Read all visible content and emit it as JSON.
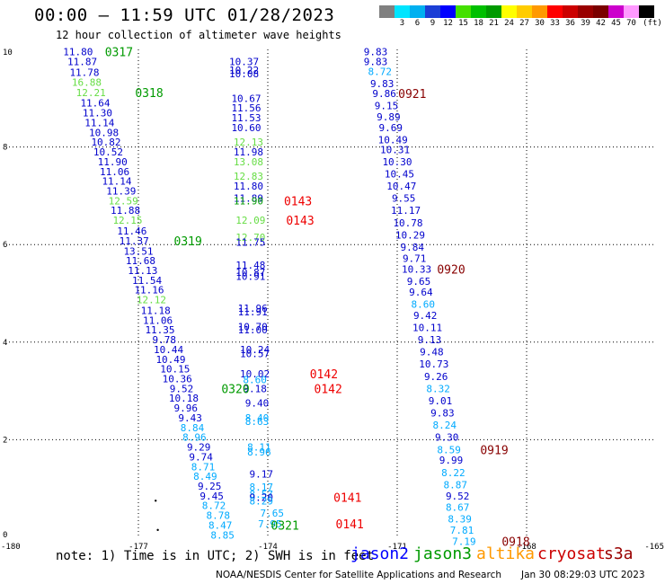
{
  "header": {
    "title": "00:00 – 11:59 UTC 01/28/2023",
    "subtitle": "12 hour collection of altimeter wave heights"
  },
  "colorbar": {
    "unit_label": "(ft)",
    "bins": [
      {
        "label": "",
        "color": "#808080"
      },
      {
        "label": "3",
        "color": "#00e5ff"
      },
      {
        "label": "6",
        "color": "#00b0f0"
      },
      {
        "label": "9",
        "color": "#1c3fd6"
      },
      {
        "label": "12",
        "color": "#0000ff"
      },
      {
        "label": "15",
        "color": "#44e000"
      },
      {
        "label": "18",
        "color": "#00c000"
      },
      {
        "label": "21",
        "color": "#009a00"
      },
      {
        "label": "24",
        "color": "#ffff00"
      },
      {
        "label": "27",
        "color": "#ffcc00"
      },
      {
        "label": "30",
        "color": "#ff9900"
      },
      {
        "label": "33",
        "color": "#ff0000"
      },
      {
        "label": "36",
        "color": "#cc0000"
      },
      {
        "label": "39",
        "color": "#990000"
      },
      {
        "label": "42",
        "color": "#7a0000"
      },
      {
        "label": "45",
        "color": "#cc00cc"
      },
      {
        "label": "70",
        "color": "#ff99ff"
      },
      {
        "label": "",
        "color": "#000000"
      }
    ]
  },
  "footer": {
    "note": "note: 1) Time is in UTC; 2) SWH is in feet",
    "credit": "NOAA/NESDIS Center for Satellite Applications and Research",
    "timestamp": "Jan 30 08:29:03 UTC 2023"
  },
  "legend": [
    {
      "name": "jason2",
      "color": "#0000ff"
    },
    {
      "name": "jason3",
      "color": "#009a00"
    },
    {
      "name": "altika",
      "color": "#ff9900"
    },
    {
      "name": "cryosat",
      "color": "#cc0000"
    },
    {
      "name": "s3a",
      "color": "#990000"
    }
  ],
  "chart_data": {
    "type": "scatter",
    "xlim": [
      -180,
      -165
    ],
    "ylim": [
      0,
      10
    ],
    "x_ticks": [
      "-180",
      "-177",
      "-174",
      "-171",
      "-168",
      "-165"
    ],
    "y_ticks": [
      "0",
      "2",
      "4",
      "6",
      "8",
      "10"
    ],
    "grid": true,
    "colors": {
      "dark_blue": "#0000cc",
      "light_blue": "#00aaff",
      "light_green": "#66dd44",
      "green": "#009a00",
      "red": "#ee0000",
      "dark_red": "#880000"
    },
    "points": [
      {
        "x": -178.4,
        "y": 9.95,
        "v": "11.80",
        "c": "dark_blue"
      },
      {
        "x": -178.3,
        "y": 9.75,
        "v": "11.87",
        "c": "dark_blue"
      },
      {
        "x": -178.25,
        "y": 9.53,
        "v": "11.78",
        "c": "dark_blue"
      },
      {
        "x": -178.2,
        "y": 9.33,
        "v": "16.88",
        "c": "light_green"
      },
      {
        "x": -178.1,
        "y": 9.12,
        "v": "12.21",
        "c": "light_green"
      },
      {
        "x": -178.0,
        "y": 8.9,
        "v": "11.64",
        "c": "dark_blue"
      },
      {
        "x": -177.95,
        "y": 8.7,
        "v": "11.30",
        "c": "dark_blue"
      },
      {
        "x": -177.9,
        "y": 8.5,
        "v": "11.14",
        "c": "dark_blue"
      },
      {
        "x": -177.8,
        "y": 8.3,
        "v": "10.98",
        "c": "dark_blue"
      },
      {
        "x": -177.75,
        "y": 8.1,
        "v": "10.82",
        "c": "dark_blue"
      },
      {
        "x": -177.7,
        "y": 7.9,
        "v": "10.52",
        "c": "dark_blue"
      },
      {
        "x": -177.6,
        "y": 7.7,
        "v": "11.90",
        "c": "dark_blue"
      },
      {
        "x": -177.55,
        "y": 7.5,
        "v": "11.06",
        "c": "dark_blue"
      },
      {
        "x": -177.5,
        "y": 7.3,
        "v": "11.14",
        "c": "dark_blue"
      },
      {
        "x": -177.4,
        "y": 7.1,
        "v": "11.39",
        "c": "dark_blue"
      },
      {
        "x": -177.35,
        "y": 6.9,
        "v": "12.59",
        "c": "light_green"
      },
      {
        "x": -177.3,
        "y": 6.7,
        "v": "11.88",
        "c": "dark_blue"
      },
      {
        "x": -177.25,
        "y": 6.5,
        "v": "12.15",
        "c": "light_green"
      },
      {
        "x": -177.15,
        "y": 6.28,
        "v": "11.46",
        "c": "dark_blue"
      },
      {
        "x": -177.1,
        "y": 6.08,
        "v": "11.37",
        "c": "dark_blue"
      },
      {
        "x": -177.0,
        "y": 5.87,
        "v": "13.51",
        "c": "dark_blue"
      },
      {
        "x": -176.95,
        "y": 5.67,
        "v": "11.68",
        "c": "dark_blue"
      },
      {
        "x": -176.9,
        "y": 5.47,
        "v": "11.13",
        "c": "dark_blue"
      },
      {
        "x": -176.8,
        "y": 5.27,
        "v": "11.54",
        "c": "dark_blue"
      },
      {
        "x": -176.75,
        "y": 5.07,
        "v": "11.16",
        "c": "dark_blue"
      },
      {
        "x": -176.7,
        "y": 4.87,
        "v": "12.12",
        "c": "light_green"
      },
      {
        "x": -176.6,
        "y": 4.65,
        "v": "11.18",
        "c": "dark_blue"
      },
      {
        "x": -176.55,
        "y": 4.45,
        "v": "11.06",
        "c": "dark_blue"
      },
      {
        "x": -176.5,
        "y": 4.25,
        "v": "11.35",
        "c": "dark_blue"
      },
      {
        "x": -176.4,
        "y": 4.05,
        "v": "9.78",
        "c": "dark_blue"
      },
      {
        "x": -176.3,
        "y": 3.85,
        "v": "10.44",
        "c": "dark_blue"
      },
      {
        "x": -176.25,
        "y": 3.65,
        "v": "10.49",
        "c": "dark_blue"
      },
      {
        "x": -176.15,
        "y": 3.45,
        "v": "10.15",
        "c": "dark_blue"
      },
      {
        "x": -176.1,
        "y": 3.25,
        "v": "10.36",
        "c": "dark_blue"
      },
      {
        "x": -176.0,
        "y": 3.05,
        "v": "9.52",
        "c": "dark_blue"
      },
      {
        "x": -175.95,
        "y": 2.85,
        "v": "10.18",
        "c": "dark_blue"
      },
      {
        "x": -175.9,
        "y": 2.65,
        "v": "9.96",
        "c": "dark_blue"
      },
      {
        "x": -175.8,
        "y": 2.45,
        "v": "9.43",
        "c": "dark_blue"
      },
      {
        "x": -175.75,
        "y": 2.25,
        "v": "8.84",
        "c": "light_blue"
      },
      {
        "x": -175.7,
        "y": 2.05,
        "v": "8.96",
        "c": "light_blue"
      },
      {
        "x": -175.6,
        "y": 1.85,
        "v": "9.29",
        "c": "dark_blue"
      },
      {
        "x": -175.55,
        "y": 1.65,
        "v": "9.74",
        "c": "dark_blue"
      },
      {
        "x": -175.5,
        "y": 1.45,
        "v": "8.71",
        "c": "light_blue"
      },
      {
        "x": -175.45,
        "y": 1.25,
        "v": "8.49",
        "c": "light_blue"
      },
      {
        "x": -175.35,
        "y": 1.05,
        "v": "9.25",
        "c": "dark_blue"
      },
      {
        "x": -175.3,
        "y": 0.85,
        "v": "9.45",
        "c": "dark_blue"
      },
      {
        "x": -175.25,
        "y": 0.65,
        "v": "8.72",
        "c": "light_blue"
      },
      {
        "x": -175.15,
        "y": 0.45,
        "v": "8.78",
        "c": "light_blue"
      },
      {
        "x": -175.1,
        "y": 0.25,
        "v": "8.47",
        "c": "light_blue"
      },
      {
        "x": -175.05,
        "y": 0.05,
        "v": "8.85",
        "c": "light_blue"
      },
      {
        "x": -174.55,
        "y": 9.75,
        "v": "10.37",
        "c": "dark_blue"
      },
      {
        "x": -174.55,
        "y": 9.58,
        "v": "10.22",
        "c": "dark_blue"
      },
      {
        "x": -174.55,
        "y": 9.5,
        "v": "10.08",
        "c": "dark_blue"
      },
      {
        "x": -174.5,
        "y": 9.0,
        "v": "10.67",
        "c": "dark_blue"
      },
      {
        "x": -174.5,
        "y": 8.8,
        "v": "11.56",
        "c": "dark_blue"
      },
      {
        "x": -174.5,
        "y": 8.6,
        "v": "11.53",
        "c": "dark_blue"
      },
      {
        "x": -174.5,
        "y": 8.4,
        "v": "10.60",
        "c": "dark_blue"
      },
      {
        "x": -174.45,
        "y": 8.1,
        "v": "12.13",
        "c": "light_green"
      },
      {
        "x": -174.45,
        "y": 7.9,
        "v": "11.98",
        "c": "dark_blue"
      },
      {
        "x": -174.45,
        "y": 7.7,
        "v": "13.08",
        "c": "light_green"
      },
      {
        "x": -174.45,
        "y": 7.4,
        "v": "12.83",
        "c": "light_green"
      },
      {
        "x": -174.45,
        "y": 7.2,
        "v": "11.80",
        "c": "dark_blue"
      },
      {
        "x": -174.45,
        "y": 6.95,
        "v": "11.89",
        "c": "dark_blue"
      },
      {
        "x": -174.45,
        "y": 6.9,
        "v": "11.90",
        "c": "green"
      },
      {
        "x": -174.4,
        "y": 6.5,
        "v": "12.09",
        "c": "light_green"
      },
      {
        "x": -174.4,
        "y": 6.15,
        "v": "12.70",
        "c": "light_green"
      },
      {
        "x": -174.4,
        "y": 6.05,
        "v": "11.75",
        "c": "dark_blue"
      },
      {
        "x": -174.4,
        "y": 5.58,
        "v": "11.48",
        "c": "dark_blue"
      },
      {
        "x": -174.4,
        "y": 5.43,
        "v": "10.87",
        "c": "dark_blue"
      },
      {
        "x": -174.4,
        "y": 5.35,
        "v": "10.91",
        "c": "dark_blue"
      },
      {
        "x": -174.35,
        "y": 4.7,
        "v": "11.96",
        "c": "dark_blue"
      },
      {
        "x": -174.35,
        "y": 4.62,
        "v": "11.91",
        "c": "dark_blue"
      },
      {
        "x": -174.35,
        "y": 4.32,
        "v": "10.70",
        "c": "dark_blue"
      },
      {
        "x": -174.35,
        "y": 4.25,
        "v": "11.00",
        "c": "dark_blue"
      },
      {
        "x": -174.3,
        "y": 3.85,
        "v": "10.24",
        "c": "dark_blue"
      },
      {
        "x": -174.3,
        "y": 3.77,
        "v": "10.57",
        "c": "dark_blue"
      },
      {
        "x": -174.3,
        "y": 3.35,
        "v": "10.02",
        "c": "dark_blue"
      },
      {
        "x": -174.3,
        "y": 3.23,
        "v": "8.60",
        "c": "light_blue"
      },
      {
        "x": -174.3,
        "y": 3.05,
        "v": "9.18",
        "c": "dark_blue"
      },
      {
        "x": -174.25,
        "y": 2.75,
        "v": "9.40",
        "c": "dark_blue"
      },
      {
        "x": -174.25,
        "y": 2.45,
        "v": "8.40",
        "c": "light_blue"
      },
      {
        "x": -174.25,
        "y": 2.38,
        "v": "8.63",
        "c": "light_blue"
      },
      {
        "x": -174.2,
        "y": 1.85,
        "v": "8.11",
        "c": "light_blue"
      },
      {
        "x": -174.2,
        "y": 1.75,
        "v": "8.96",
        "c": "light_blue"
      },
      {
        "x": -174.15,
        "y": 1.3,
        "v": "9.17",
        "c": "dark_blue"
      },
      {
        "x": -174.15,
        "y": 1.03,
        "v": "8.17",
        "c": "light_blue"
      },
      {
        "x": -174.15,
        "y": 0.88,
        "v": "8.57",
        "c": "light_blue"
      },
      {
        "x": -174.15,
        "y": 0.82,
        "v": "9.20",
        "c": "dark_blue"
      },
      {
        "x": -174.15,
        "y": 0.75,
        "v": "8.29",
        "c": "light_blue"
      },
      {
        "x": -173.9,
        "y": 0.5,
        "v": "7.65",
        "c": "light_blue"
      },
      {
        "x": -173.95,
        "y": 0.28,
        "v": "7.95",
        "c": "light_blue"
      },
      {
        "x": -171.5,
        "y": 9.95,
        "v": "9.83",
        "c": "dark_blue"
      },
      {
        "x": -171.5,
        "y": 9.75,
        "v": "9.83",
        "c": "dark_blue"
      },
      {
        "x": -171.4,
        "y": 9.55,
        "v": "8.72",
        "c": "light_blue"
      },
      {
        "x": -171.35,
        "y": 9.3,
        "v": "9.83",
        "c": "dark_blue"
      },
      {
        "x": -171.3,
        "y": 9.1,
        "v": "9.86",
        "c": "dark_blue"
      },
      {
        "x": -171.25,
        "y": 8.85,
        "v": "9.15",
        "c": "dark_blue"
      },
      {
        "x": -171.2,
        "y": 8.62,
        "v": "9.89",
        "c": "dark_blue"
      },
      {
        "x": -171.15,
        "y": 8.4,
        "v": "9.69",
        "c": "dark_blue"
      },
      {
        "x": -171.1,
        "y": 8.15,
        "v": "10.49",
        "c": "dark_blue"
      },
      {
        "x": -171.05,
        "y": 7.95,
        "v": "10.31",
        "c": "dark_blue"
      },
      {
        "x": -171.0,
        "y": 7.7,
        "v": "10.30",
        "c": "dark_blue"
      },
      {
        "x": -170.95,
        "y": 7.45,
        "v": "10.45",
        "c": "dark_blue"
      },
      {
        "x": -170.9,
        "y": 7.2,
        "v": "10.47",
        "c": "dark_blue"
      },
      {
        "x": -170.85,
        "y": 6.95,
        "v": "9.55",
        "c": "dark_blue"
      },
      {
        "x": -170.8,
        "y": 6.7,
        "v": "11.17",
        "c": "dark_blue"
      },
      {
        "x": -170.75,
        "y": 6.45,
        "v": "10.78",
        "c": "dark_blue"
      },
      {
        "x": -170.7,
        "y": 6.2,
        "v": "10.29",
        "c": "dark_blue"
      },
      {
        "x": -170.65,
        "y": 5.95,
        "v": "9.84",
        "c": "dark_blue"
      },
      {
        "x": -170.6,
        "y": 5.72,
        "v": "9.71",
        "c": "dark_blue"
      },
      {
        "x": -170.55,
        "y": 5.5,
        "v": "10.33",
        "c": "dark_blue"
      },
      {
        "x": -170.5,
        "y": 5.25,
        "v": "9.65",
        "c": "dark_blue"
      },
      {
        "x": -170.45,
        "y": 5.03,
        "v": "9.64",
        "c": "dark_blue"
      },
      {
        "x": -170.4,
        "y": 4.78,
        "v": "8.60",
        "c": "light_blue"
      },
      {
        "x": -170.35,
        "y": 4.55,
        "v": "9.42",
        "c": "dark_blue"
      },
      {
        "x": -170.3,
        "y": 4.3,
        "v": "10.11",
        "c": "dark_blue"
      },
      {
        "x": -170.25,
        "y": 4.05,
        "v": "9.13",
        "c": "dark_blue"
      },
      {
        "x": -170.2,
        "y": 3.8,
        "v": "9.48",
        "c": "dark_blue"
      },
      {
        "x": -170.15,
        "y": 3.55,
        "v": "10.73",
        "c": "dark_blue"
      },
      {
        "x": -170.1,
        "y": 3.3,
        "v": "9.26",
        "c": "dark_blue"
      },
      {
        "x": -170.05,
        "y": 3.05,
        "v": "8.32",
        "c": "light_blue"
      },
      {
        "x": -170.0,
        "y": 2.8,
        "v": "9.01",
        "c": "dark_blue"
      },
      {
        "x": -169.95,
        "y": 2.55,
        "v": "9.83",
        "c": "dark_blue"
      },
      {
        "x": -169.9,
        "y": 2.3,
        "v": "8.24",
        "c": "light_blue"
      },
      {
        "x": -169.85,
        "y": 2.05,
        "v": "9.30",
        "c": "dark_blue"
      },
      {
        "x": -169.8,
        "y": 1.8,
        "v": "8.59",
        "c": "light_blue"
      },
      {
        "x": -169.75,
        "y": 1.58,
        "v": "9.99",
        "c": "dark_blue"
      },
      {
        "x": -169.7,
        "y": 1.33,
        "v": "8.22",
        "c": "light_blue"
      },
      {
        "x": -169.65,
        "y": 1.08,
        "v": "8.87",
        "c": "light_blue"
      },
      {
        "x": -169.6,
        "y": 0.85,
        "v": "9.52",
        "c": "dark_blue"
      },
      {
        "x": -169.6,
        "y": 0.62,
        "v": "8.67",
        "c": "light_blue"
      },
      {
        "x": -169.55,
        "y": 0.38,
        "v": "8.39",
        "c": "light_blue"
      },
      {
        "x": -169.5,
        "y": 0.15,
        "v": "7.81",
        "c": "light_blue"
      },
      {
        "x": -169.45,
        "y": -0.08,
        "v": "7.19",
        "c": "light_blue"
      }
    ],
    "time_labels": [
      {
        "x": -177.45,
        "y": 9.95,
        "t": "0317",
        "c": "green"
      },
      {
        "x": -176.75,
        "y": 9.12,
        "t": "0318",
        "c": "green"
      },
      {
        "x": -175.85,
        "y": 6.08,
        "t": "0319",
        "c": "green"
      },
      {
        "x": -174.75,
        "y": 3.05,
        "t": "0320",
        "c": "green"
      },
      {
        "x": -173.6,
        "y": 0.25,
        "t": "0321",
        "c": "green"
      },
      {
        "x": -173.3,
        "y": 6.9,
        "t": "0143",
        "c": "red"
      },
      {
        "x": -173.25,
        "y": 6.5,
        "t": "0143",
        "c": "red"
      },
      {
        "x": -172.7,
        "y": 3.35,
        "t": "0142",
        "c": "red"
      },
      {
        "x": -172.6,
        "y": 3.05,
        "t": "0142",
        "c": "red"
      },
      {
        "x": -172.15,
        "y": 0.82,
        "t": "0141",
        "c": "red"
      },
      {
        "x": -172.1,
        "y": 0.28,
        "t": "0141",
        "c": "red"
      },
      {
        "x": -170.65,
        "y": 9.1,
        "t": "0921",
        "c": "dark_red"
      },
      {
        "x": -169.75,
        "y": 5.5,
        "t": "0920",
        "c": "dark_red"
      },
      {
        "x": -168.75,
        "y": 1.8,
        "t": "0919",
        "c": "dark_red"
      },
      {
        "x": -168.25,
        "y": -0.08,
        "t": "0918",
        "c": "dark_red"
      }
    ],
    "markers": [
      {
        "x": -176.6,
        "y": 0.75
      },
      {
        "x": -176.55,
        "y": 0.15
      }
    ]
  }
}
